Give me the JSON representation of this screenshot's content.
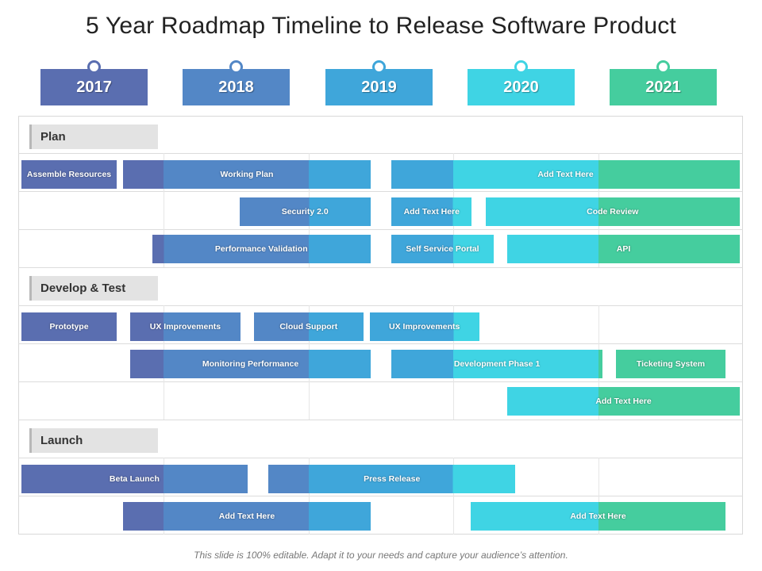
{
  "title": "5 Year Roadmap Timeline to Release Software Product",
  "years": [
    {
      "label": "2017",
      "color": "#5a6eb0"
    },
    {
      "label": "2018",
      "color": "#5387c6"
    },
    {
      "label": "2019",
      "color": "#3fa6da"
    },
    {
      "label": "2020",
      "color": "#3fd4e4"
    },
    {
      "label": "2021",
      "color": "#45cd9e"
    }
  ],
  "sections": [
    {
      "label": "Plan"
    },
    {
      "label": "Develop & Test"
    },
    {
      "label": "Launch"
    }
  ],
  "tasks": [
    {
      "label": "Assemble Resources",
      "start_year": 2017.0,
      "end_year": 2017.7
    },
    {
      "label": "Working Plan",
      "start_year": 2017.7,
      "end_year": 2019.45
    },
    {
      "label": "Add Text Here",
      "start_year": 2019.55,
      "end_year": 2022.0
    },
    {
      "label": "Security 2.0",
      "start_year": 2018.5,
      "end_year": 2019.45
    },
    {
      "label": "Add Text Here",
      "start_year": 2019.55,
      "end_year": 2020.15
    },
    {
      "label": "Code Review",
      "start_year": 2020.2,
      "end_year": 2022.0
    },
    {
      "label": "Performance Validation",
      "start_year": 2017.9,
      "end_year": 2019.45
    },
    {
      "label": "Self Service Portal",
      "start_year": 2019.55,
      "end_year": 2020.3
    },
    {
      "label": "API",
      "start_year": 2020.35,
      "end_year": 2022.0
    },
    {
      "label": "Prototype",
      "start_year": 2017.0,
      "end_year": 2017.7
    },
    {
      "label": "UX Improvements",
      "start_year": 2017.75,
      "end_year": 2018.55
    },
    {
      "label": "Cloud Support",
      "start_year": 2018.6,
      "end_year": 2019.4
    },
    {
      "label": "UX Improvements",
      "start_year": 2019.4,
      "end_year": 2020.2
    },
    {
      "label": "Monitoring Performance",
      "start_year": 2017.75,
      "end_year": 2019.45
    },
    {
      "label": "Development Phase 1",
      "start_year": 2019.55,
      "end_year": 2021.05
    },
    {
      "label": "Ticketing System",
      "start_year": 2021.1,
      "end_year": 2021.9
    },
    {
      "label": "Add Text Here",
      "start_year": 2020.35,
      "end_year": 2022.0
    },
    {
      "label": "Beta Launch",
      "start_year": 2017.0,
      "end_year": 2018.6
    },
    {
      "label": "Press Release",
      "start_year": 2018.7,
      "end_year": 2020.45
    },
    {
      "label": "Add Text Here",
      "start_year": 2017.7,
      "end_year": 2019.45
    },
    {
      "label": "Add Text Here",
      "start_year": 2020.1,
      "end_year": 2021.9
    }
  ],
  "footer": "This slide is 100% editable. Adapt it to your needs and capture your audience’s attention."
}
